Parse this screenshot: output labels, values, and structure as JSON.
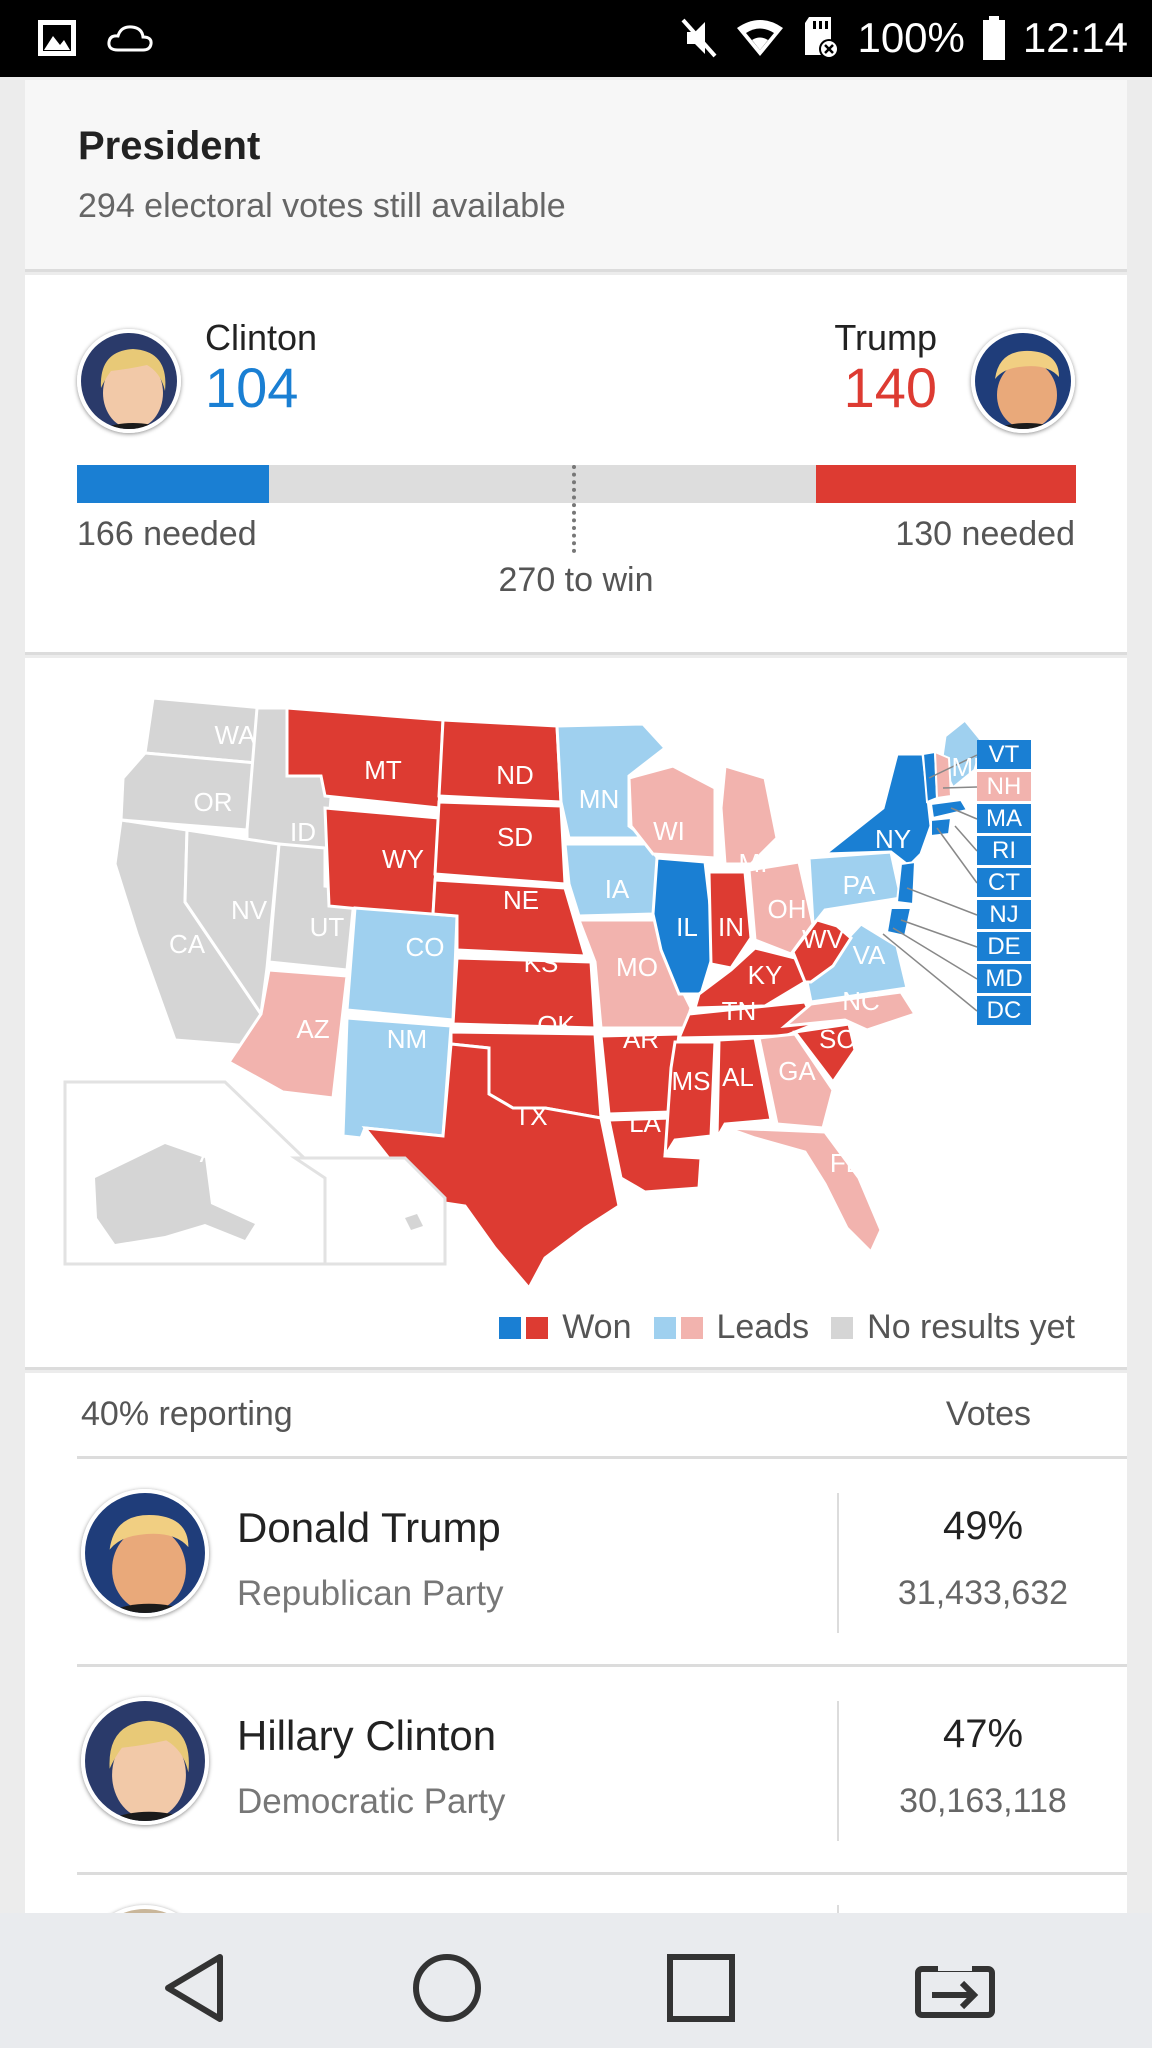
{
  "status_bar": {
    "battery": "100%",
    "time": "12:14",
    "icons": [
      "gallery-icon",
      "cloud-icon",
      "mute-icon",
      "wifi-icon",
      "sd-card-icon",
      "battery-icon"
    ]
  },
  "header": {
    "title": "President",
    "subtitle": "294 electoral votes still available"
  },
  "electoral": {
    "left": {
      "name": "Clinton",
      "votes": "104",
      "needed": "166 needed",
      "color": "#1a7fd3"
    },
    "right": {
      "name": "Trump",
      "votes": "140",
      "needed": "130 needed",
      "color": "#dd3b32"
    },
    "to_win": "270 to win",
    "total": 538,
    "left_value": 104,
    "right_value": 140
  },
  "map": {
    "colors": {
      "dem_won": "#1a7fd3",
      "rep_won": "#dd3b32",
      "dem_leads": "#9fd0ef",
      "rep_leads": "#f2b3ae",
      "no_results": "#d5d5d5"
    },
    "state_labels": {
      "WA": "WA",
      "OR": "OR",
      "CA": "CA",
      "ID": "ID",
      "NV": "NV",
      "UT": "UT",
      "AZ": "AZ",
      "MT": "MT",
      "WY": "WY",
      "CO": "CO",
      "NM": "NM",
      "ND": "ND",
      "SD": "SD",
      "NE": "NE",
      "KS": "KS",
      "OK": "OK",
      "TX": "TX",
      "MN": "MN",
      "IA": "IA",
      "MO": "MO",
      "AR": "AR",
      "LA": "LA",
      "WI": "WI",
      "IL": "IL",
      "MI": "MI",
      "IN": "IN",
      "OH": "OH",
      "KY": "KY",
      "TN": "TN",
      "MS": "MS",
      "AL": "AL",
      "GA": "GA",
      "FL": "FL",
      "SC": "SC",
      "NC": "NC",
      "VA": "VA",
      "WV": "WV",
      "PA": "PA",
      "NY": "NY",
      "ME": "ME",
      "AK": "AK",
      "HI": "HI"
    },
    "small_states": [
      "VT",
      "NH",
      "MA",
      "RI",
      "CT",
      "NJ",
      "DE",
      "MD",
      "DC"
    ],
    "legend": {
      "won": "Won",
      "leads": "Leads",
      "no_results": "No results yet"
    }
  },
  "results": {
    "reporting": "40% reporting",
    "votes_header": "Votes",
    "candidates": [
      {
        "name": "Donald Trump",
        "party": "Republican Party",
        "percent": "49%",
        "votes": "31,433,632"
      },
      {
        "name": "Hillary Clinton",
        "party": "Democratic Party",
        "percent": "47%",
        "votes": "30,163,118"
      }
    ]
  },
  "nav": [
    "back-icon",
    "home-icon",
    "recents-icon",
    "screen-share-icon"
  ]
}
